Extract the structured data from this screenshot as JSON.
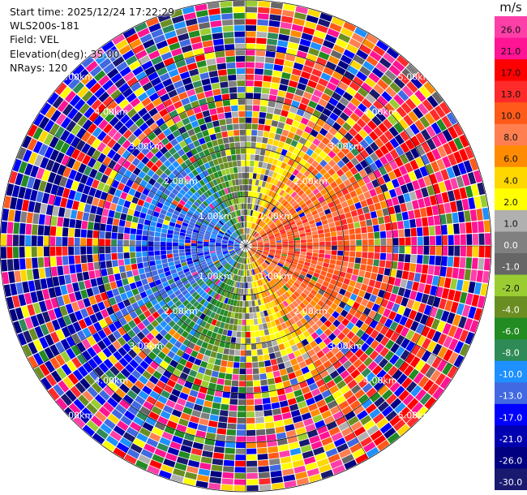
{
  "header": {
    "start_time": "Start time: 2025/12/24 17:22:29",
    "instrument": "WLS200s-181",
    "field": "Field: VEL",
    "elevation": "Elevation(deg): 35.00",
    "nrays": "NRays: 120"
  },
  "chart_data": {
    "type": "heatmap",
    "projection": "polar",
    "field": "VEL",
    "units": "m/s",
    "elevation_deg": 35.0,
    "n_rays": 120,
    "range_rings_km": [
      1.0,
      2.0,
      3.0,
      4.0,
      5.0
    ],
    "ring_labels": [
      "1.00km",
      "2.00km",
      "3.00km",
      "4.00km",
      "5.00km"
    ],
    "colorbar": {
      "ticks": [
        "26.0",
        "21.0",
        "17.0",
        "13.0",
        "10.0",
        "8.0",
        "6.0",
        "4.0",
        "2.0",
        "1.0",
        "0.0",
        "-1.0",
        "-2.0",
        "-4.0",
        "-6.0",
        "-8.0",
        "-10.0",
        "-13.0",
        "-17.0",
        "-21.0",
        "-26.0",
        "-30.0"
      ],
      "colors": [
        "#ff3fa8",
        "#ff1493",
        "#ff0000",
        "#ff2a2a",
        "#ff5a1a",
        "#ff7f50",
        "#ff8c00",
        "#ffd700",
        "#ffff00",
        "#b0b0b0",
        "#808080",
        "#666666",
        "#9acd32",
        "#6b8e23",
        "#228b22",
        "#2e8b57",
        "#1e90ff",
        "#4169e1",
        "#0000ff",
        "#0000b0",
        "#000080",
        "#191970"
      ]
    },
    "velocity_pattern": {
      "inner_positive_sector_deg": [
        0,
        180
      ],
      "inner_negative_sector_deg": [
        180,
        360
      ],
      "outer_noise": true
    }
  }
}
